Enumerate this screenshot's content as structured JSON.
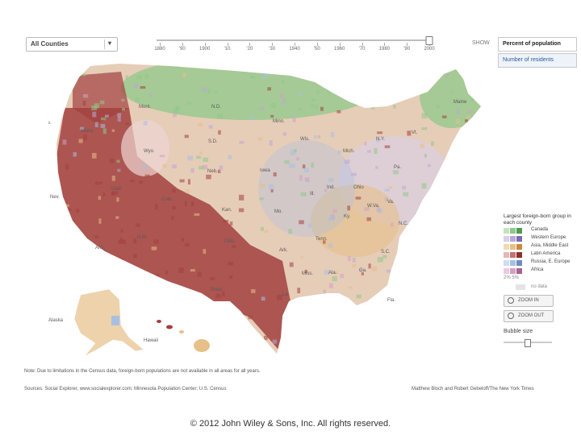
{
  "controls": {
    "region_select": {
      "value": "All Counties"
    },
    "timeline": {
      "years": [
        "1880",
        "'90",
        "1900",
        "'10",
        "'20",
        "'30",
        "1940",
        "'50",
        "1960",
        "'70",
        "1980",
        "'90",
        "2000"
      ],
      "selected": "2000"
    },
    "show_label": "SHOW",
    "show_options": [
      "Percent of population",
      "Number of residents"
    ],
    "show_selected": "Percent of population"
  },
  "map": {
    "state_labels": [
      "Mont.",
      "N.D.",
      "Minn.",
      "Maine",
      "Ore.",
      "Idaho",
      "S.D.",
      "Wis.",
      "Mich.",
      "N.Y.",
      "Vt.",
      "Wyo.",
      "Neb.",
      "Iowa",
      "Ill.",
      "Ind.",
      "Ohio",
      "Pa.",
      "Nev.",
      "Utah",
      "Colo.",
      "Kan.",
      "Mo.",
      "Ky.",
      "W.Va.",
      "Va.",
      "Calif.",
      "Ariz.",
      "N.M.",
      "Okla.",
      "Ark.",
      "Tenn.",
      "N.C.",
      "S.C.",
      "Texas",
      "Miss.",
      "Ala.",
      "Ga.",
      "La.",
      "Fla.",
      "Alaska",
      "Hawaii"
    ],
    "colors": {
      "canada": "#8fc88a",
      "western_europe": "#b8a9d6",
      "asia_middle_east": "#e6c088",
      "latin_america": "#a2403e",
      "russia_e_europe": "#a9bfe2",
      "africa": "#d3a0c4",
      "no_data": "#e6e3e3"
    }
  },
  "legend": {
    "title": "Largest foreign-born group in each county",
    "items": [
      {
        "label": "Canada",
        "colors": [
          "#c7e2bf",
          "#8fc88a",
          "#4e9a4e"
        ]
      },
      {
        "label": "Western Europe",
        "colors": [
          "#d8cfe8",
          "#b8a9d6",
          "#7c6bb0"
        ]
      },
      {
        "label": "Asia, Middle East",
        "colors": [
          "#f1d9b1",
          "#e6c088",
          "#c8893e"
        ]
      },
      {
        "label": "Latin America",
        "colors": [
          "#e3b8b5",
          "#c17472",
          "#8e2e2c"
        ]
      },
      {
        "label": "Russia, E. Europe",
        "colors": [
          "#cfdcf0",
          "#a9bfe2",
          "#6f8cc3"
        ]
      },
      {
        "label": "Africa",
        "colors": [
          "#ecc9e0",
          "#d3a0c4",
          "#a8628f"
        ]
      }
    ],
    "range_label": "2% 5%",
    "no_data_label": "no data"
  },
  "zoom": {
    "in_label": "ZOOM IN",
    "out_label": "ZOOM OUT"
  },
  "bubble": {
    "label": "Bubble size"
  },
  "footer": {
    "note": "Note: Due to limitations in the Census data, foreign-born populations are not available in all areas for all years.",
    "sources": "Sources: Social Explorer, www.socialexplorer.com; Minnesota Population Center; U.S. Census",
    "credit": "Matthew Bloch and Robert Gebeloff/The New York Times",
    "copyright": "© 2012 John Wiley & Sons, Inc. All rights reserved."
  }
}
